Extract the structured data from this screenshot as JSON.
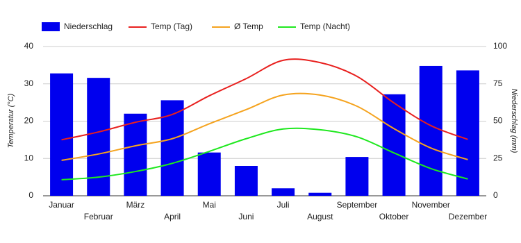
{
  "chart_data": {
    "type": "bar-line",
    "categories": [
      "Januar",
      "Februar",
      "März",
      "April",
      "Mai",
      "Juni",
      "Juli",
      "August",
      "September",
      "Oktober",
      "November",
      "Dezember"
    ],
    "series": [
      {
        "name": "Niederschlag",
        "color": "#0000ee",
        "type": "bar",
        "axis": "y2",
        "values": [
          82,
          79,
          55,
          64,
          29,
          20,
          5,
          2,
          26,
          68,
          87,
          84
        ]
      },
      {
        "name": "Temp (Tag)",
        "color": "#e8201e",
        "type": "line",
        "values": [
          15,
          17.1,
          19.7,
          21.8,
          26.8,
          31.4,
          36.3,
          35.7,
          32,
          24.9,
          18.8,
          15.1
        ]
      },
      {
        "name": "Ø Temp",
        "color": "#f5a31e",
        "type": "line",
        "values": [
          9.5,
          11.2,
          13.4,
          15.3,
          19.3,
          23.1,
          27,
          27,
          24,
          18,
          12.8,
          9.7
        ]
      },
      {
        "name": "Temp (Nacht)",
        "color": "#1ee81e",
        "type": "line",
        "values": [
          4.3,
          5,
          6.5,
          8.7,
          11.9,
          15.3,
          17.9,
          17.7,
          15.8,
          11.5,
          7.3,
          4.5
        ]
      }
    ],
    "ylabel": "Temperatur (°C)",
    "y2label": "Niederschlag (mm)",
    "ylim": [
      0,
      40
    ],
    "yticks": [
      0,
      10,
      20,
      30,
      40
    ],
    "y2lim": [
      0,
      100
    ],
    "y2ticks": [
      0,
      25,
      50,
      75,
      100
    ],
    "grid": true,
    "legend": "top-left"
  }
}
